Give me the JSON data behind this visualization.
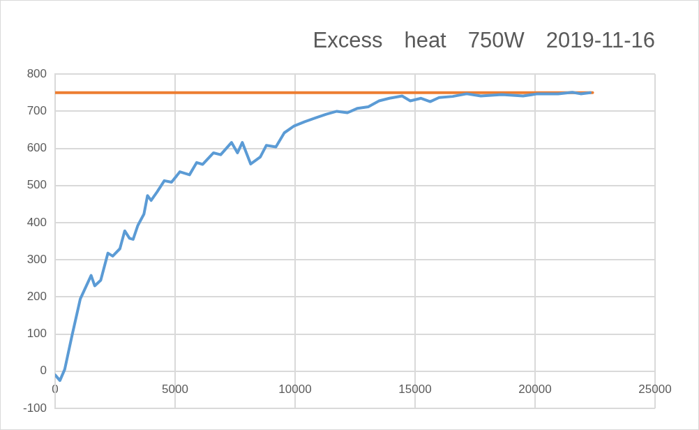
{
  "chart_data": {
    "type": "line",
    "title": "Excess　heat　750W　2019-11-16",
    "xlim": [
      0,
      25000
    ],
    "xticks": [
      0,
      5000,
      10000,
      15000,
      20000,
      25000
    ],
    "ylim": [
      -100,
      800
    ],
    "yticks": [
      -100,
      0,
      100,
      200,
      300,
      400,
      500,
      600,
      700,
      800
    ],
    "grid": true,
    "legend": false,
    "marker": "none",
    "line_style": "solid",
    "series": [
      {
        "color": "#5b9bd5",
        "x": [
          0,
          200,
          400,
          700,
          1050,
          1500,
          1650,
          1900,
          2200,
          2400,
          2700,
          2900,
          3100,
          3250,
          3450,
          3700,
          3850,
          4000,
          4250,
          4550,
          4850,
          5200,
          5600,
          5900,
          6150,
          6600,
          6900,
          7350,
          7600,
          7800,
          8150,
          8550,
          8800,
          9200,
          9550,
          9950,
          10400,
          10850,
          11300,
          11740,
          12180,
          12600,
          13050,
          13500,
          13930,
          14460,
          14800,
          15250,
          15630,
          16000,
          16570,
          17150,
          17740,
          18620,
          19500,
          20100,
          20960,
          21550,
          21900,
          22300
        ],
        "values": [
          -10,
          -25,
          5,
          95,
          195,
          258,
          230,
          245,
          318,
          310,
          330,
          378,
          358,
          355,
          393,
          423,
          473,
          460,
          483,
          513,
          509,
          537,
          529,
          562,
          557,
          588,
          583,
          616,
          588,
          616,
          558,
          577,
          608,
          604,
          642,
          660,
          672,
          682,
          692,
          700,
          696,
          708,
          712,
          728,
          735,
          741,
          728,
          735,
          726,
          737,
          740,
          747,
          741,
          745,
          741,
          747,
          747,
          751,
          747,
          750
        ]
      },
      {
        "color": "#ed7d31",
        "x": [
          0,
          22400
        ],
        "values": [
          750,
          750
        ]
      }
    ]
  }
}
